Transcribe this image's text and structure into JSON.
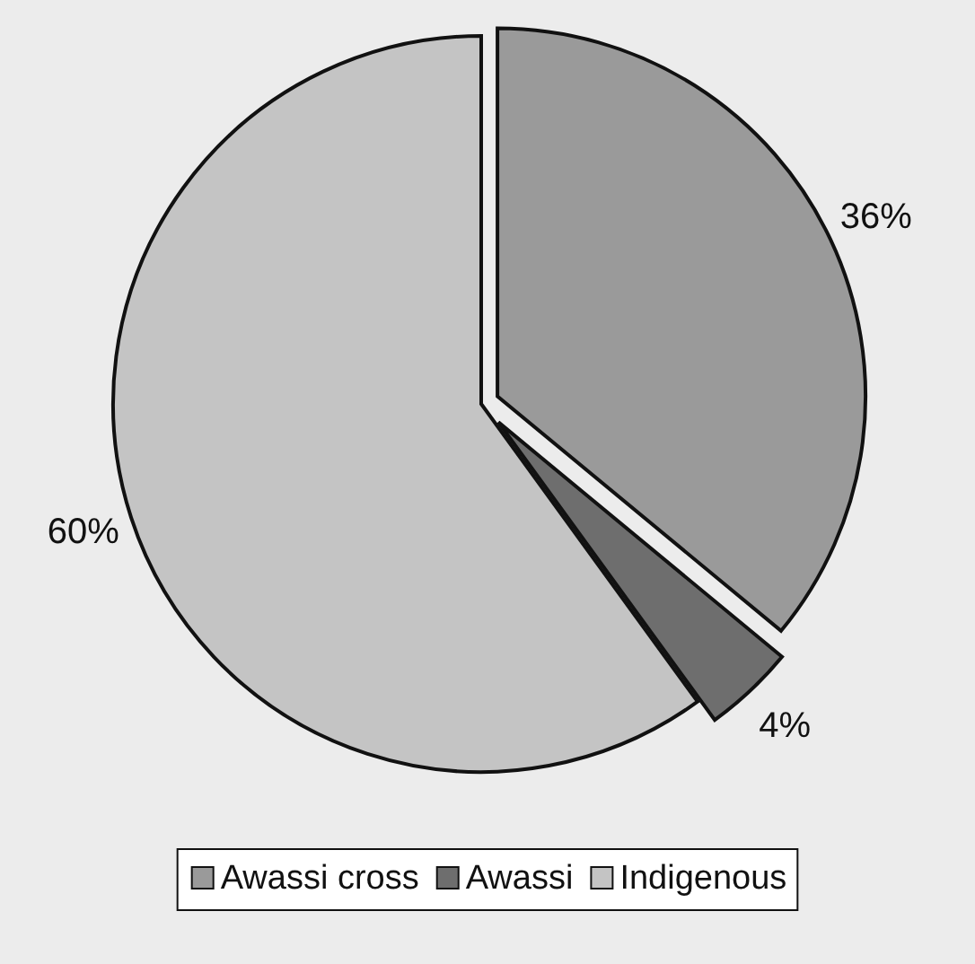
{
  "chart_data": {
    "type": "pie",
    "categories": [
      "Awassi cross",
      "Awassi",
      "Indigenous"
    ],
    "values": [
      36,
      4,
      60
    ],
    "colors": [
      "#9a9a9a",
      "#6e6e6e",
      "#c4c4c4"
    ],
    "value_labels": [
      "36%",
      "4%",
      "60%"
    ],
    "legend": "bottom"
  }
}
